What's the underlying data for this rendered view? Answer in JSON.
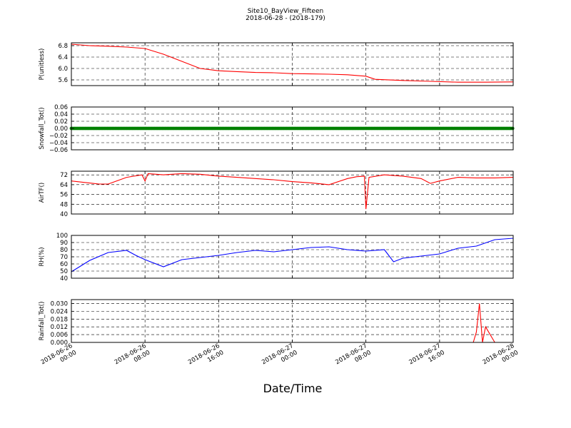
{
  "title": "Site10_BayView_Fifteen",
  "subtitle": "2018-06-28 - (2018-179)",
  "xlabel": "Date/Time",
  "x_ticks": [
    {
      "line1": "2018-06-26",
      "line2": "00:00"
    },
    {
      "line1": "2018-06-26",
      "line2": "08:00"
    },
    {
      "line1": "2018-06-26",
      "line2": "16:00"
    },
    {
      "line1": "2018-06-27",
      "line2": "00:00"
    },
    {
      "line1": "2018-06-27",
      "line2": "08:00"
    },
    {
      "line1": "2018-06-27",
      "line2": "16:00"
    },
    {
      "line1": "2018-06-28",
      "line2": "00:00"
    }
  ],
  "chart_data": [
    {
      "type": "line",
      "ylabel": "P(unitless)",
      "ylim": [
        5.4,
        6.9
      ],
      "yticks": [
        "6.8",
        "6.4",
        "6.0",
        "5.6"
      ],
      "ytick_values": [
        6.8,
        6.4,
        6.0,
        5.6
      ],
      "grid": true,
      "series": [
        {
          "color": "#ff0000",
          "x": [
            "2018-06-26 00:00",
            "2018-06-26 02:00",
            "2018-06-26 04:00",
            "2018-06-26 06:00",
            "2018-06-26 08:00",
            "2018-06-26 10:00",
            "2018-06-26 12:00",
            "2018-06-26 14:00",
            "2018-06-26 16:00",
            "2018-06-26 18:00",
            "2018-06-26 20:00",
            "2018-06-26 22:00",
            "2018-06-27 00:00",
            "2018-06-27 02:00",
            "2018-06-27 04:00",
            "2018-06-27 06:00",
            "2018-06-27 08:00",
            "2018-06-27 09:00",
            "2018-06-27 12:00",
            "2018-06-27 15:00",
            "2018-06-27 18:00",
            "2018-06-27 21:00",
            "2018-06-28 00:00"
          ],
          "y": [
            6.85,
            6.8,
            6.78,
            6.75,
            6.7,
            6.5,
            6.25,
            6.0,
            5.92,
            5.89,
            5.86,
            5.85,
            5.82,
            5.81,
            5.8,
            5.78,
            5.73,
            5.62,
            5.58,
            5.55,
            5.52,
            5.52,
            5.53
          ]
        }
      ]
    },
    {
      "type": "scatter",
      "ylabel": "Snowfall_Tot()",
      "ylim": [
        -0.06,
        0.06
      ],
      "yticks": [
        "0.06",
        "0.04",
        "0.02",
        "0.00",
        "−0.02",
        "−0.04",
        "−0.06"
      ],
      "ytick_values": [
        0.06,
        0.04,
        0.02,
        0.0,
        -0.02,
        -0.04,
        -0.06
      ],
      "grid": true,
      "series": [
        {
          "color": "#008000",
          "marker": "dense-points",
          "constant_value": 0.0
        }
      ]
    },
    {
      "type": "line",
      "ylabel": "AirTF()",
      "ylim": [
        40,
        75
      ],
      "yticks": [
        "72",
        "64",
        "56",
        "48",
        "40"
      ],
      "ytick_values": [
        72,
        64,
        56,
        48,
        40
      ],
      "grid": true,
      "series": [
        {
          "color": "#ff0000",
          "x": [
            "2018-06-26 00:00",
            "2018-06-26 03:00",
            "2018-06-26 04:00",
            "2018-06-26 06:00",
            "2018-06-26 07:40",
            "2018-06-26 08:00",
            "2018-06-26 08:20",
            "2018-06-26 10:00",
            "2018-06-26 12:00",
            "2018-06-26 14:00",
            "2018-06-26 16:00",
            "2018-06-26 18:00",
            "2018-06-26 20:00",
            "2018-06-26 22:00",
            "2018-06-27 00:00",
            "2018-06-27 02:00",
            "2018-06-27 04:00",
            "2018-06-27 06:00",
            "2018-06-27 07:00",
            "2018-06-27 07:50",
            "2018-06-27 08:00",
            "2018-06-27 08:20",
            "2018-06-27 10:00",
            "2018-06-27 12:00",
            "2018-06-27 14:00",
            "2018-06-27 15:00",
            "2018-06-27 16:00",
            "2018-06-27 18:00",
            "2018-06-27 20:00",
            "2018-06-27 22:00",
            "2018-06-28 00:00"
          ],
          "y": [
            67,
            64.5,
            64.5,
            70,
            72,
            67,
            73,
            72,
            73,
            72.5,
            71,
            70,
            69,
            68,
            66.5,
            65.5,
            64,
            69,
            70.5,
            71,
            44,
            70,
            72,
            71,
            69,
            65,
            67,
            70,
            69.5,
            69.5,
            70
          ]
        }
      ]
    },
    {
      "type": "line",
      "ylabel": "RH(%)",
      "ylim": [
        40,
        100
      ],
      "yticks": [
        "100",
        "90",
        "80",
        "70",
        "60",
        "50",
        "40"
      ],
      "ytick_values": [
        100,
        90,
        80,
        70,
        60,
        50,
        40
      ],
      "grid": true,
      "series": [
        {
          "color": "#0000ff",
          "x": [
            "2018-06-26 00:00",
            "2018-06-26 02:00",
            "2018-06-26 04:00",
            "2018-06-26 06:00",
            "2018-06-26 07:00",
            "2018-06-26 08:00",
            "2018-06-26 10:00",
            "2018-06-26 12:00",
            "2018-06-26 14:00",
            "2018-06-26 16:00",
            "2018-06-26 18:00",
            "2018-06-26 20:00",
            "2018-06-26 22:00",
            "2018-06-27 00:00",
            "2018-06-27 02:00",
            "2018-06-27 04:00",
            "2018-06-27 06:00",
            "2018-06-27 08:00",
            "2018-06-27 10:00",
            "2018-06-27 11:00",
            "2018-06-27 12:00",
            "2018-06-27 14:00",
            "2018-06-27 16:00",
            "2018-06-27 18:00",
            "2018-06-27 20:00",
            "2018-06-27 22:00",
            "2018-06-28 00:00"
          ],
          "y": [
            49,
            65,
            76,
            79,
            72,
            66,
            56,
            66,
            69,
            72,
            76,
            79,
            77,
            80,
            83,
            84,
            80,
            78,
            80,
            63,
            68,
            71,
            74,
            82,
            85,
            94,
            96
          ]
        }
      ]
    },
    {
      "type": "line",
      "ylabel": "Rainfall_Tot()",
      "ylim": [
        0,
        0.033
      ],
      "yticks": [
        "0.030",
        "0.024",
        "0.018",
        "0.012",
        "0.006",
        "0.000"
      ],
      "ytick_values": [
        0.03,
        0.024,
        0.018,
        0.012,
        0.006,
        0.0
      ],
      "grid": true,
      "series": [
        {
          "color": "#ff0000",
          "x": [
            "2018-06-26 00:00",
            "2018-06-27 19:40",
            "2018-06-27 20:00",
            "2018-06-27 20:20",
            "2018-06-27 20:40",
            "2018-06-27 21:00",
            "2018-06-27 22:00",
            "2018-06-28 00:00"
          ],
          "y": [
            0,
            0,
            0.008,
            0.03,
            0,
            0.012,
            0,
            0
          ]
        }
      ]
    }
  ]
}
